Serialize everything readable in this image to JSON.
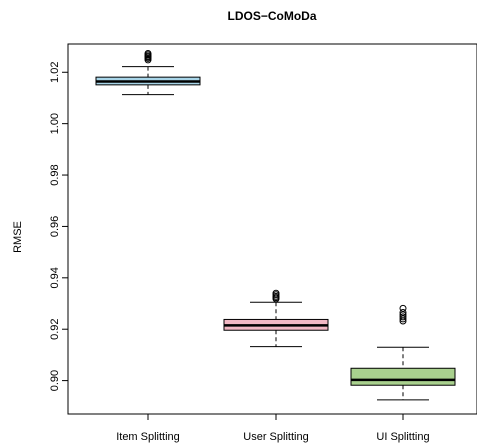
{
  "chart_data": {
    "type": "box",
    "title": "LDOS−CoMoDa",
    "xlabel": "",
    "ylabel": "RMSE",
    "ylim": [
      0.887,
      1.031
    ],
    "yticks": [
      "0.90",
      "0.92",
      "0.94",
      "0.96",
      "0.98",
      "1.00",
      "1.02"
    ],
    "ytick_values": [
      0.9,
      0.92,
      0.94,
      0.96,
      0.98,
      1.0,
      1.02
    ],
    "categories": [
      "Item Splitting",
      "User Splitting",
      "UI Splitting"
    ],
    "boxes": [
      {
        "name": "Item Splitting",
        "color": "#a8d5e8",
        "whisker_low": 1.0113,
        "q1": 1.0151,
        "median": 1.0164,
        "q3": 1.0181,
        "whisker_high": 1.0222,
        "outliers": [
          1.0248,
          1.0254,
          1.0259,
          1.0263,
          1.0268,
          1.0273
        ]
      },
      {
        "name": "User Splitting",
        "color": "#f2b8c4",
        "whisker_low": 0.9132,
        "q1": 0.9196,
        "median": 0.9215,
        "q3": 0.9238,
        "whisker_high": 0.9305,
        "outliers": [
          0.9318,
          0.9323,
          0.9328,
          0.9334,
          0.934
        ]
      },
      {
        "name": "UI Splitting",
        "color": "#a9d18e",
        "whisker_low": 0.8925,
        "q1": 0.8982,
        "median": 0.9003,
        "q3": 0.9048,
        "whisker_high": 0.913,
        "outliers": [
          0.9232,
          0.924,
          0.9248,
          0.9256,
          0.9265,
          0.9281
        ]
      }
    ]
  }
}
